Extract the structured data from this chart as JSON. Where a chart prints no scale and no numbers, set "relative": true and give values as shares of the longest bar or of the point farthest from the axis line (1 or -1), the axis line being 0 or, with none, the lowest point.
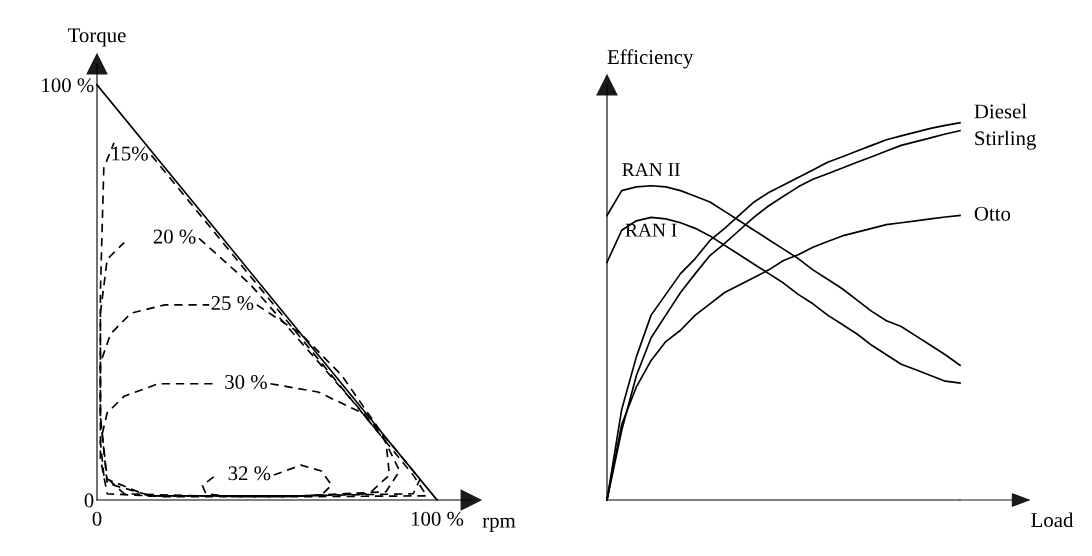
{
  "chart_data": [
    {
      "type": "line",
      "xlabel": "rpm",
      "ylabel": "Torque",
      "xlim": [
        0,
        110
      ],
      "ylim": [
        0,
        105
      ],
      "xticks": [
        0,
        {
          "value": 100,
          "label": "100 %"
        }
      ],
      "yticks": [
        0,
        {
          "value": 100,
          "label": "100 %"
        }
      ],
      "grid": false,
      "legend": false,
      "marker": "none",
      "series": [
        {
          "color": "#000000",
          "line_style": "solid",
          "x": [
            0,
            30,
            60,
            85,
            100
          ],
          "values": [
            100,
            70,
            40,
            15,
            0
          ]
        },
        {
          "name": "15%",
          "color": "#000000",
          "line_style": "dashed",
          "x": [
            16,
            20,
            40,
            60,
            80,
            93,
            97,
            60,
            20,
            3,
            1,
            1,
            2,
            5
          ],
          "values": [
            83,
            79,
            59,
            39,
            19,
            6,
            1,
            0.8,
            0.8,
            1.5,
            10,
            50,
            80,
            86
          ]
        },
        {
          "name": "20 %",
          "color": "#000000",
          "line_style": "dashed",
          "x": [
            30,
            45,
            60,
            75,
            88,
            95,
            93,
            60,
            16,
            3,
            1,
            1,
            3,
            8
          ],
          "values": [
            63,
            52,
            38,
            24,
            12,
            5,
            1.5,
            1,
            1,
            4,
            20,
            45,
            58,
            62
          ]
        },
        {
          "name": "25 %",
          "color": "#000000",
          "line_style": "dashed",
          "x": [
            47,
            60,
            72,
            83,
            89,
            85,
            60,
            15,
            3,
            1,
            1,
            4,
            10,
            20,
            33
          ],
          "values": [
            47,
            40,
            30,
            17,
            7,
            2,
            1,
            1,
            5,
            20,
            33,
            40,
            45,
            47,
            47
          ]
        },
        {
          "name": "30 %",
          "color": "#000000",
          "line_style": "dashed",
          "x": [
            51,
            65,
            78,
            85,
            86,
            80,
            60,
            30,
            8,
            2,
            1,
            3,
            8,
            18,
            34
          ],
          "values": [
            28,
            26,
            21,
            14,
            6,
            1.5,
            1,
            1,
            1.5,
            6,
            14,
            21,
            25,
            28,
            28
          ]
        },
        {
          "name": "32 %",
          "color": "#000000",
          "line_style": "dashed",
          "x": [
            52,
            60,
            66,
            69,
            66,
            55,
            40,
            32,
            31,
            35
          ],
          "values": [
            6,
            8.4,
            7,
            3.6,
            1.2,
            0.8,
            0.8,
            1.5,
            3.5,
            6
          ]
        }
      ]
    },
    {
      "type": "line",
      "xlabel": "Load",
      "ylabel": "Efficiency",
      "relative": true,
      "categories": [
        null,
        null,
        null,
        null,
        null,
        null,
        null,
        null,
        null,
        null,
        null,
        null,
        null,
        null,
        null,
        null,
        null,
        null,
        null,
        null,
        null,
        null,
        null,
        null,
        null
      ],
      "grid": false,
      "legend": false,
      "marker": "none",
      "line_style": "solid",
      "series": [
        {
          "name": "Diesel",
          "color": "#000000",
          "values": [
            0,
            0.24,
            0.38,
            0.49,
            0.545,
            0.6,
            0.64,
            0.688,
            0.72,
            0.755,
            0.79,
            0.815,
            0.835,
            0.855,
            0.875,
            0.895,
            0.91,
            0.925,
            0.94,
            0.955,
            0.965,
            0.975,
            0.985,
            0.993,
            1.0
          ]
        },
        {
          "name": "Stirling",
          "color": "#000000",
          "values": [
            0,
            0.185,
            0.33,
            0.43,
            0.49,
            0.55,
            0.6,
            0.648,
            0.68,
            0.715,
            0.75,
            0.78,
            0.805,
            0.83,
            0.85,
            0.865,
            0.88,
            0.895,
            0.91,
            0.925,
            0.94,
            0.95,
            0.96,
            0.97,
            0.979
          ]
        },
        {
          "name": "Otto",
          "color": "#000000",
          "values": [
            0,
            0.2,
            0.3,
            0.37,
            0.42,
            0.45,
            0.49,
            0.52,
            0.55,
            0.57,
            0.59,
            0.61,
            0.635,
            0.65,
            0.67,
            0.685,
            0.7,
            0.71,
            0.72,
            0.73,
            0.735,
            0.74,
            0.745,
            0.75,
            0.754
          ]
        },
        {
          "name": "RAN II",
          "color": "#000000",
          "values": [
            0.754,
            0.82,
            0.83,
            0.833,
            0.83,
            0.82,
            0.805,
            0.79,
            0.765,
            0.74,
            0.715,
            0.69,
            0.665,
            0.64,
            0.61,
            0.585,
            0.56,
            0.53,
            0.5,
            0.475,
            0.46,
            0.435,
            0.41,
            0.385,
            0.357
          ]
        },
        {
          "name": "RAN I",
          "color": "#000000",
          "values": [
            0.63,
            0.715,
            0.74,
            0.749,
            0.745,
            0.735,
            0.72,
            0.7,
            0.675,
            0.65,
            0.625,
            0.6,
            0.575,
            0.545,
            0.52,
            0.49,
            0.465,
            0.44,
            0.41,
            0.385,
            0.36,
            0.345,
            0.33,
            0.315,
            0.31
          ]
        }
      ]
    }
  ]
}
